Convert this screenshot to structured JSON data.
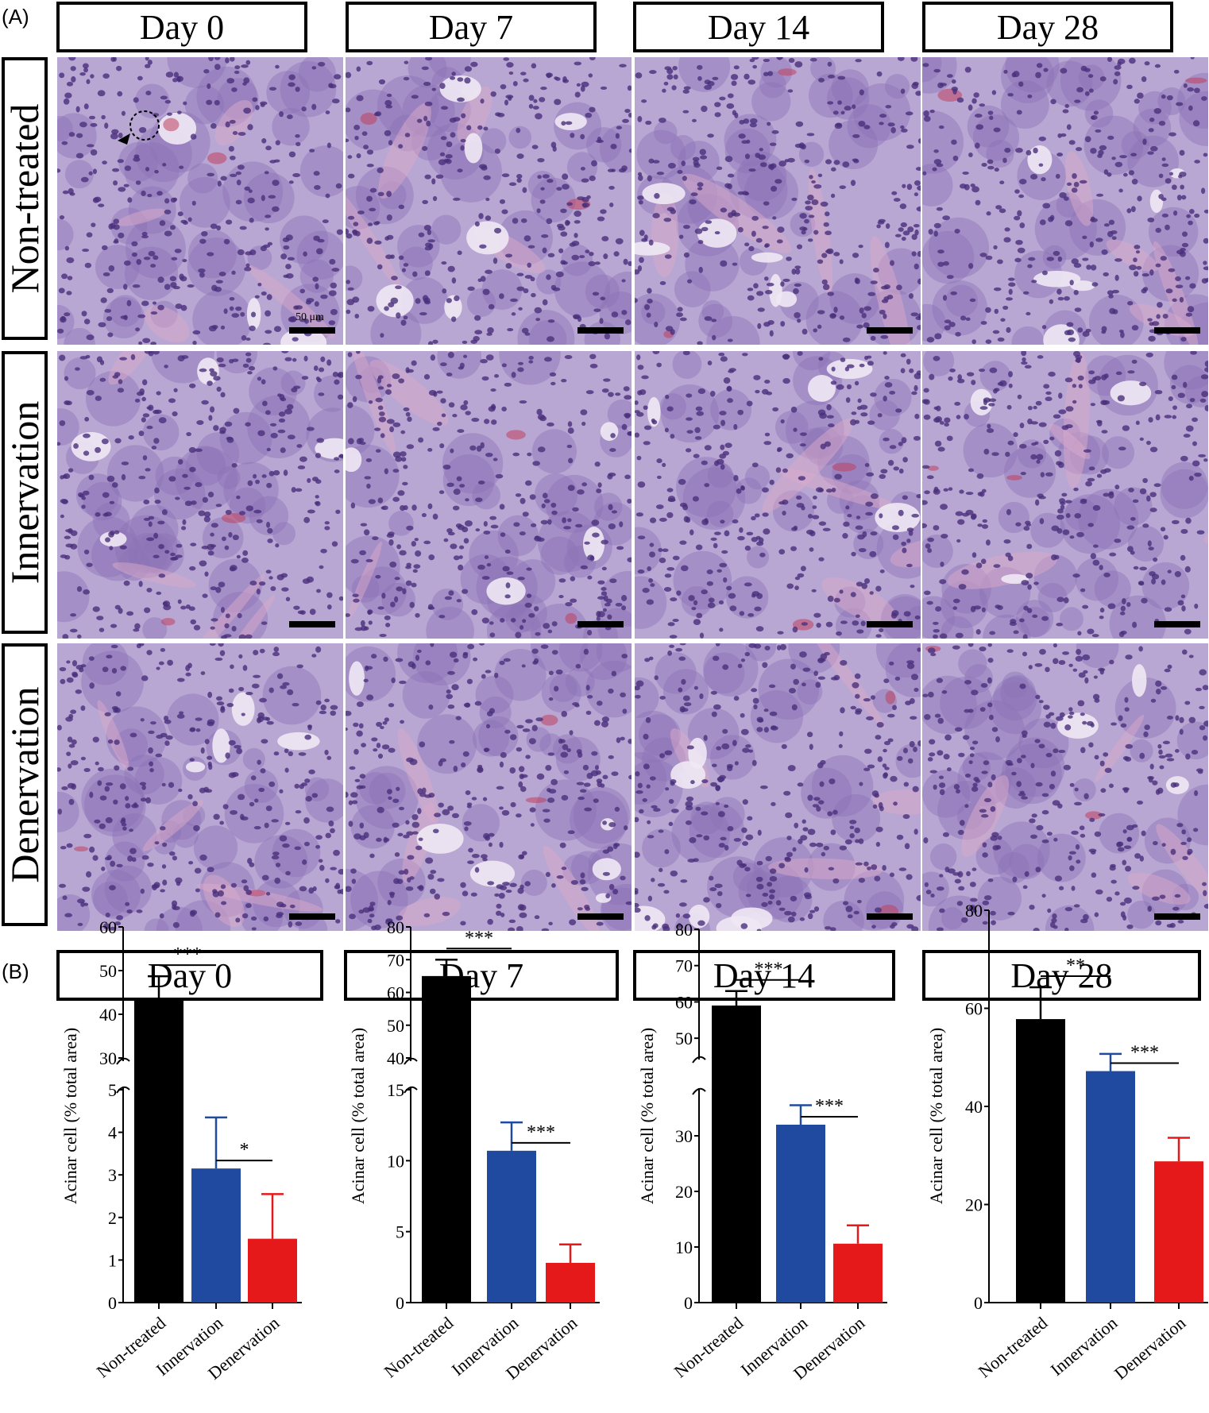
{
  "panel_a": {
    "label": "(A)",
    "days": [
      "Day 0",
      "Day 7",
      "Day 14",
      "Day 28"
    ],
    "rows": [
      "Non-treated",
      "Innervation",
      "Denervation"
    ],
    "scale_label": "50 μm",
    "tissue_colors": {
      "nucleus": "#4a2f7c",
      "cytoplasm": "#8c73b6",
      "background": "#b9a7d3",
      "lumen": "#efe9f4",
      "blood": "#c0415f",
      "stroma": "#d9a9c9"
    }
  },
  "panel_b": {
    "label": "(B)",
    "days": [
      "Day 0",
      "Day 7",
      "Day 14",
      "Day 28"
    ]
  },
  "chart_data": [
    {
      "type": "bar",
      "title": "Day 0",
      "ylabel": "Acinar cell (% total area)",
      "categories": [
        "Non-treated",
        "Innervation",
        "Denervation"
      ],
      "values": [
        43.5,
        3.15,
        1.5
      ],
      "errors": [
        5.2,
        1.2,
        1.05
      ],
      "colors": [
        "#000000",
        "#1f4aa0",
        "#e5191a"
      ],
      "broken_axis": {
        "lower": [
          0,
          5
        ],
        "upper": [
          30,
          60
        ]
      },
      "yticks_lower": [
        "0",
        "1",
        "2",
        "3",
        "4",
        "5"
      ],
      "yticks_upper": [
        "30",
        "40",
        "50",
        "60"
      ],
      "significance": [
        {
          "from": 0,
          "to": 1,
          "label": "***"
        },
        {
          "from": 1,
          "to": 2,
          "label": "*"
        }
      ]
    },
    {
      "type": "bar",
      "title": "Day 7",
      "ylabel": "Acinar cell (% total area)",
      "categories": [
        "Non-treated",
        "Innervation",
        "Denervation"
      ],
      "values": [
        65.0,
        10.7,
        2.8
      ],
      "errors": [
        5.0,
        2.0,
        1.3
      ],
      "colors": [
        "#000000",
        "#1f4aa0",
        "#e5191a"
      ],
      "broken_axis": {
        "lower": [
          0,
          15
        ],
        "upper": [
          40,
          80
        ]
      },
      "yticks_lower": [
        "0",
        "5",
        "10",
        "15"
      ],
      "yticks_upper": [
        "40",
        "50",
        "60",
        "70",
        "80"
      ],
      "significance": [
        {
          "from": 0,
          "to": 1,
          "label": "***"
        },
        {
          "from": 1,
          "to": 2,
          "label": "***"
        }
      ]
    },
    {
      "type": "bar",
      "title": "Day 14",
      "ylabel": "Acinar cell (% total area)",
      "categories": [
        "Non-treated",
        "Innervation",
        "Denervation"
      ],
      "values": [
        59.0,
        32.0,
        10.6
      ],
      "errors": [
        4.0,
        3.5,
        3.3
      ],
      "colors": [
        "#000000",
        "#1f4aa0",
        "#e5191a"
      ],
      "broken_axis": {
        "lower": [
          0,
          38
        ],
        "upper": [
          45,
          80
        ]
      },
      "yticks_lower": [
        "0",
        "10",
        "20",
        "30"
      ],
      "yticks_upper": [
        "50",
        "60",
        "70",
        "80"
      ],
      "significance": [
        {
          "from": 0,
          "to": 1,
          "label": "***"
        },
        {
          "from": 1,
          "to": 2,
          "label": "***"
        }
      ]
    },
    {
      "type": "bar",
      "title": "Day 28",
      "ylabel": "Acinar cell (% total area)",
      "categories": [
        "Non-treated",
        "Innervation",
        "Denervation"
      ],
      "values": [
        57.8,
        47.2,
        28.8
      ],
      "errors": [
        6.5,
        3.5,
        4.8
      ],
      "colors": [
        "#000000",
        "#1f4aa0",
        "#e5191a"
      ],
      "ylim": [
        0,
        80
      ],
      "yticks": [
        "0",
        "20",
        "40",
        "60",
        "80"
      ],
      "significance": [
        {
          "from": 0,
          "to": 1,
          "label": "**"
        },
        {
          "from": 1,
          "to": 2,
          "label": "***"
        }
      ]
    }
  ]
}
